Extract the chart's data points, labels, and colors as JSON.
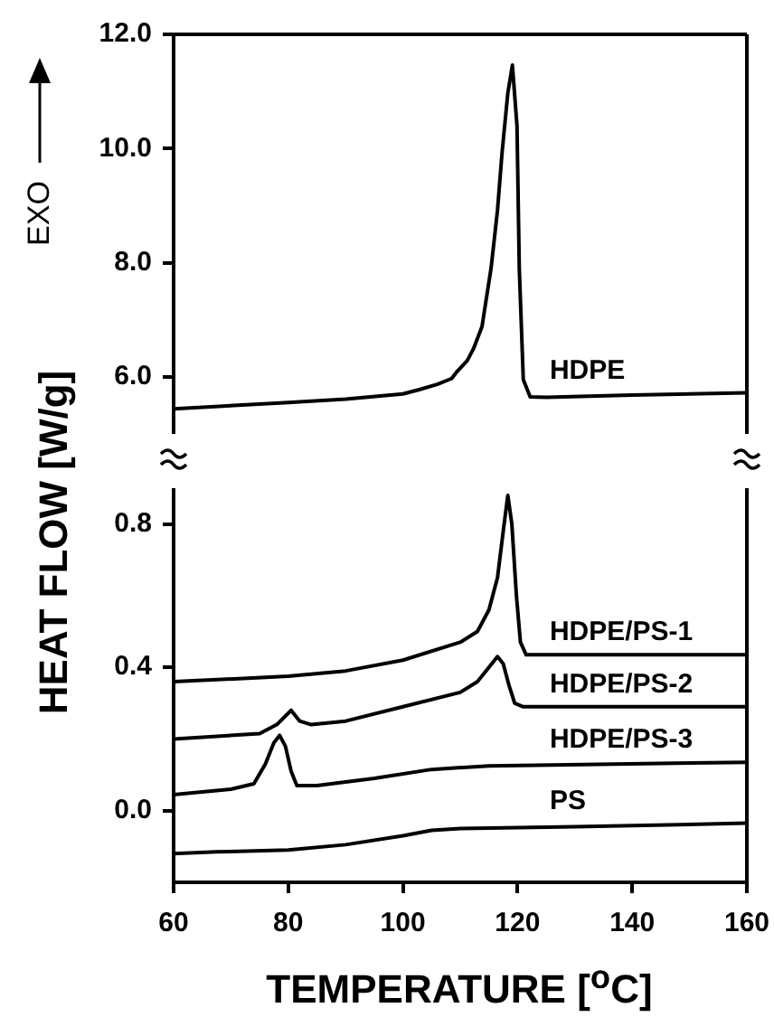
{
  "chart_data": [
    {
      "type": "line",
      "ylabel": "HEAT FLOW [W/g]",
      "annotations": [
        "EXO"
      ],
      "xlim": [
        60,
        160
      ],
      "ylim": [
        5.0,
        12.0
      ],
      "yticks": [
        {
          "value": 6,
          "label": "6.0"
        },
        {
          "value": 8,
          "label": "8.0"
        },
        {
          "value": 10,
          "label": "10.0"
        },
        {
          "value": 12,
          "label": "12.0"
        }
      ],
      "tick_labels": "y",
      "grid": false,
      "legend": false,
      "marker": "none",
      "series": [
        {
          "name": "HDPE",
          "color": "#000000",
          "x": [
            60,
            80,
            90,
            100,
            103,
            106,
            108.5,
            109.5,
            111.2,
            112.3,
            113.8,
            115.4,
            116.5,
            117.3,
            118.3,
            119.1,
            119.9,
            120.3,
            121,
            122.2,
            125,
            140,
            160
          ],
          "values": [
            5.44,
            5.55,
            5.61,
            5.7,
            5.78,
            5.87,
            5.97,
            6.1,
            6.28,
            6.49,
            6.88,
            7.92,
            8.92,
            9.93,
            10.97,
            11.46,
            10.4,
            7.9,
            5.95,
            5.65,
            5.64,
            5.68,
            5.72
          ]
        }
      ]
    },
    {
      "type": "line",
      "xlabel": "TEMPERATURE [$^{o}$C]",
      "xlim": [
        60,
        160
      ],
      "xticks": [
        60,
        80,
        100,
        120,
        140,
        160
      ],
      "ylim": [
        -0.2,
        0.9
      ],
      "yticks": [
        {
          "value": 0,
          "label": "0.0"
        },
        {
          "value": 0.4,
          "label": "0.4"
        },
        {
          "value": 0.8,
          "label": "0.8"
        }
      ],
      "grid": false,
      "legend": false,
      "marker": "none",
      "series": [
        {
          "name": "HDPE/PS-1",
          "color": "#000000",
          "x": [
            60,
            80,
            90,
            100,
            110,
            113,
            115,
            116.5,
            117.5,
            118.3,
            119,
            119.8,
            120.5,
            121.5,
            130,
            160
          ],
          "values": [
            0.36,
            0.375,
            0.39,
            0.42,
            0.47,
            0.5,
            0.56,
            0.65,
            0.78,
            0.88,
            0.8,
            0.6,
            0.47,
            0.435,
            0.435,
            0.435
          ]
        },
        {
          "name": "HDPE/PS-2",
          "color": "#000000",
          "x": [
            60,
            75,
            78,
            80.5,
            82,
            84,
            90,
            100,
            110,
            113,
            115,
            116.5,
            117.5,
            118.5,
            119.5,
            121,
            160
          ],
          "values": [
            0.2,
            0.215,
            0.24,
            0.28,
            0.25,
            0.24,
            0.25,
            0.29,
            0.33,
            0.36,
            0.4,
            0.43,
            0.41,
            0.35,
            0.3,
            0.29,
            0.29
          ]
        },
        {
          "name": "HDPE/PS-3",
          "color": "#000000",
          "x": [
            60,
            70,
            74,
            76,
            77.5,
            78.5,
            79.5,
            80.5,
            81.5,
            85,
            95,
            105,
            115,
            160
          ],
          "values": [
            0.045,
            0.06,
            0.075,
            0.13,
            0.19,
            0.21,
            0.18,
            0.11,
            0.07,
            0.07,
            0.09,
            0.115,
            0.125,
            0.135
          ]
        },
        {
          "name": "PS",
          "color": "#000000",
          "x": [
            60,
            67.5,
            80,
            90,
            100,
            105,
            110,
            130,
            160
          ],
          "values": [
            -0.12,
            -0.115,
            -0.11,
            -0.095,
            -0.07,
            -0.055,
            -0.05,
            -0.045,
            -0.035
          ]
        }
      ]
    }
  ]
}
